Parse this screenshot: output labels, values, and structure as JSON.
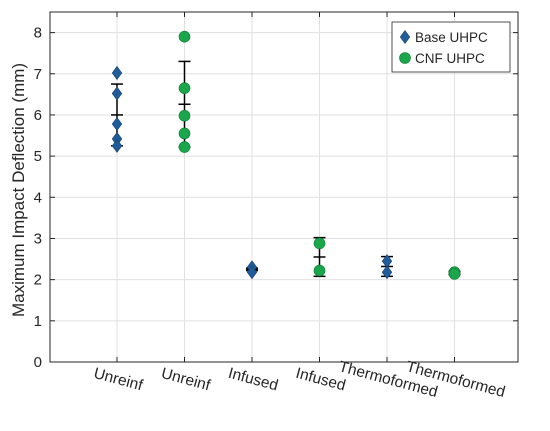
{
  "chart_data": {
    "type": "scatter",
    "title": "",
    "xlabel": "",
    "ylabel": "Maximum Impact Deflection (mm)",
    "categories": [
      "Unreinf",
      "Unreinf",
      "Infused",
      "Infused",
      "Thermoformed",
      "Thermoformed"
    ],
    "ylim": [
      0,
      8.5
    ],
    "yticks": [
      0,
      1,
      2,
      3,
      4,
      5,
      6,
      7,
      8
    ],
    "grid": true,
    "legend_position": "top-right",
    "colors": {
      "base": "#1f5c99",
      "cnf": "#1aa64a",
      "errorbar": "#000000",
      "grid": "#e0e0e0",
      "axis": "#262626"
    },
    "series": [
      {
        "name": "Base UHPC",
        "marker": "diamond",
        "color": "#1f5c99",
        "points": [
          {
            "category_index": 0,
            "values": [
              7.02,
              6.52,
              5.78,
              5.42,
              5.25
            ]
          },
          {
            "category_index": 2,
            "values": [
              2.3,
              2.18
            ]
          },
          {
            "category_index": 4,
            "values": [
              2.45,
              2.18
            ]
          }
        ]
      },
      {
        "name": "CNF UHPC",
        "marker": "circle",
        "color": "#1aa64a",
        "points": [
          {
            "category_index": 1,
            "values": [
              7.9,
              6.65,
              5.98,
              5.55,
              5.22
            ]
          },
          {
            "category_index": 3,
            "values": [
              2.88,
              2.22
            ]
          },
          {
            "category_index": 5,
            "values": [
              2.18,
              2.14
            ]
          }
        ]
      }
    ],
    "error_bars": [
      {
        "category_index": 0,
        "mean": 6.0,
        "low": 5.25,
        "high": 6.75
      },
      {
        "category_index": 1,
        "mean": 6.26,
        "low": 5.22,
        "high": 7.3
      },
      {
        "category_index": 2,
        "mean": 2.25,
        "low": 2.22,
        "high": 2.28
      },
      {
        "category_index": 3,
        "mean": 2.55,
        "low": 2.08,
        "high": 3.02
      },
      {
        "category_index": 4,
        "mean": 2.32,
        "low": 2.08,
        "high": 2.56
      },
      {
        "category_index": 5,
        "mean": 2.16,
        "low": 2.12,
        "high": 2.2
      }
    ]
  }
}
